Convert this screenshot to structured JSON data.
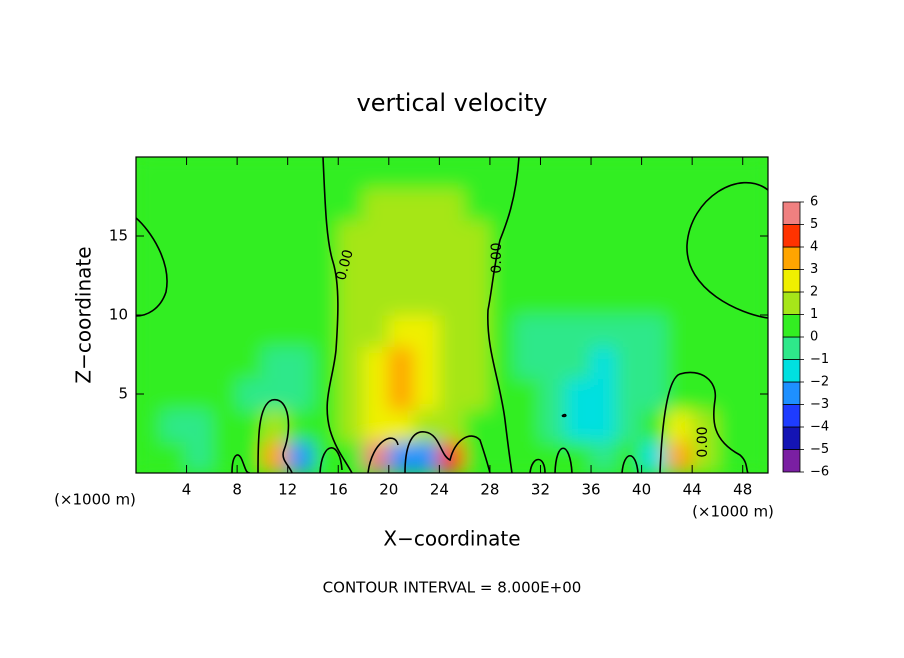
{
  "chart_data": {
    "type": "contour",
    "title": "vertical velocity",
    "xlabel": "X−coordinate",
    "ylabel": "Z−coordinate",
    "xunit_labels": [
      "(×1000 m)",
      "(×1000 m)"
    ],
    "annotation": "CONTOUR INTERVAL = 8.000E+00",
    "contour_labels": [
      "0.00",
      "0.00",
      "0.00"
    ],
    "xlim": [
      0,
      50
    ],
    "ylim": [
      0,
      20
    ],
    "xticks": [
      4,
      8,
      12,
      16,
      20,
      24,
      28,
      32,
      36,
      40,
      44,
      48
    ],
    "yticks": [
      5,
      10,
      15
    ],
    "x": [
      1,
      3,
      5,
      7,
      9,
      11,
      13,
      15,
      17,
      19,
      21,
      23,
      25,
      27,
      29,
      31,
      33,
      35,
      37,
      39,
      41,
      43,
      45,
      47,
      49
    ],
    "z": [
      1,
      3,
      5,
      7,
      9,
      11,
      13,
      15,
      17,
      19
    ],
    "values": [
      [
        0.3,
        0.2,
        -0.8,
        0.3,
        0.5,
        3,
        -3,
        0.3,
        0.8,
        6.5,
        -3,
        -2.5,
        4.5,
        0.5,
        0.3,
        0.3,
        0.3,
        0.2,
        -0.5,
        0.2,
        -2,
        3.5,
        1,
        0.4,
        0.5
      ],
      [
        0.4,
        -0.3,
        -0.5,
        0.3,
        0.8,
        1.5,
        0.5,
        0.3,
        1.3,
        2.5,
        2,
        1.5,
        1.3,
        0.8,
        0.3,
        0.2,
        -0.8,
        -1.5,
        -1.5,
        -0.5,
        0.5,
        2.5,
        1.2,
        0.5,
        0.4
      ],
      [
        0.5,
        0.4,
        0.2,
        0.1,
        -0.2,
        -0.4,
        -0.6,
        0.3,
        1.5,
        2.5,
        3.5,
        2,
        1.5,
        1.2,
        0.3,
        0,
        -0.5,
        -1.2,
        -1.3,
        -1,
        -0.5,
        0.6,
        0.6,
        0.5,
        0.4
      ],
      [
        0.5,
        0.5,
        0.3,
        0.2,
        0,
        -0.3,
        -0.5,
        0.3,
        1.5,
        2.5,
        3.5,
        2.8,
        1.8,
        1.2,
        0.3,
        -0.8,
        -0.5,
        -1,
        -1.2,
        -0.5,
        -0.2,
        0.2,
        0.4,
        0.5,
        0.5
      ],
      [
        0.5,
        0.5,
        0.4,
        0.3,
        0.2,
        0.1,
        0,
        0.3,
        1.8,
        1.8,
        2.5,
        2.2,
        1.5,
        1.5,
        0.4,
        -0.3,
        -0.3,
        -0.3,
        -0.4,
        -0.5,
        -0.2,
        0.3,
        0.5,
        0.5,
        0.5
      ],
      [
        0.3,
        0.3,
        0.4,
        0.5,
        0.4,
        0.2,
        0.2,
        0.3,
        1.6,
        1.8,
        1.8,
        1.8,
        1.8,
        1.6,
        0.4,
        0.3,
        0.3,
        0.3,
        0.3,
        0.3,
        0.3,
        0.4,
        0.5,
        0.5,
        0.4
      ],
      [
        0.3,
        0.3,
        0.4,
        0.5,
        0.5,
        0.4,
        0.4,
        0.4,
        1.3,
        1.5,
        1.6,
        1.6,
        1.5,
        1.3,
        0.4,
        0.4,
        0.4,
        0.4,
        0.3,
        0.3,
        0.3,
        0.4,
        0.5,
        0.4,
        0.4
      ],
      [
        0.4,
        0.5,
        0.5,
        0.5,
        0.5,
        0.5,
        0.5,
        0.5,
        1,
        1.3,
        1.4,
        1.4,
        1.3,
        1,
        0.5,
        0.5,
        0.5,
        0.5,
        0.5,
        0.5,
        0.5,
        0.5,
        0.5,
        0.5,
        0.5
      ],
      [
        0.5,
        0.5,
        0.5,
        0.5,
        0.5,
        0.5,
        0.5,
        0.5,
        0.7,
        1,
        1.1,
        1.1,
        1,
        0.7,
        0.5,
        0.5,
        0.5,
        0.5,
        0.5,
        0.5,
        0.5,
        0.5,
        0.5,
        0.5,
        0.5
      ],
      [
        0.5,
        0.5,
        0.5,
        0.5,
        0.5,
        0.5,
        0.5,
        0.5,
        0.5,
        0.5,
        0.5,
        0.5,
        0.5,
        0.5,
        0.5,
        0.5,
        0.5,
        0.5,
        0.5,
        0.5,
        0.5,
        0.5,
        0.5,
        0.5,
        0.5
      ]
    ],
    "colorbar": {
      "ticks": [
        {
          "value": -6,
          "label": "−6"
        },
        {
          "value": -5,
          "label": "−5"
        },
        {
          "value": -4,
          "label": "−4"
        },
        {
          "value": -3,
          "label": "−3"
        },
        {
          "value": -2,
          "label": "−2"
        },
        {
          "value": -1,
          "label": "−1"
        },
        0,
        1,
        2,
        3,
        4,
        5,
        6
      ],
      "colors": [
        "#7a1fa2",
        "#1414b4",
        "#1e3cff",
        "#1e90ff",
        "#00e0e0",
        "#2ee88a",
        "#33ee22",
        "#a6e619",
        "#f0f000",
        "#ffa500",
        "#ff3300",
        "#f08080"
      ]
    }
  }
}
